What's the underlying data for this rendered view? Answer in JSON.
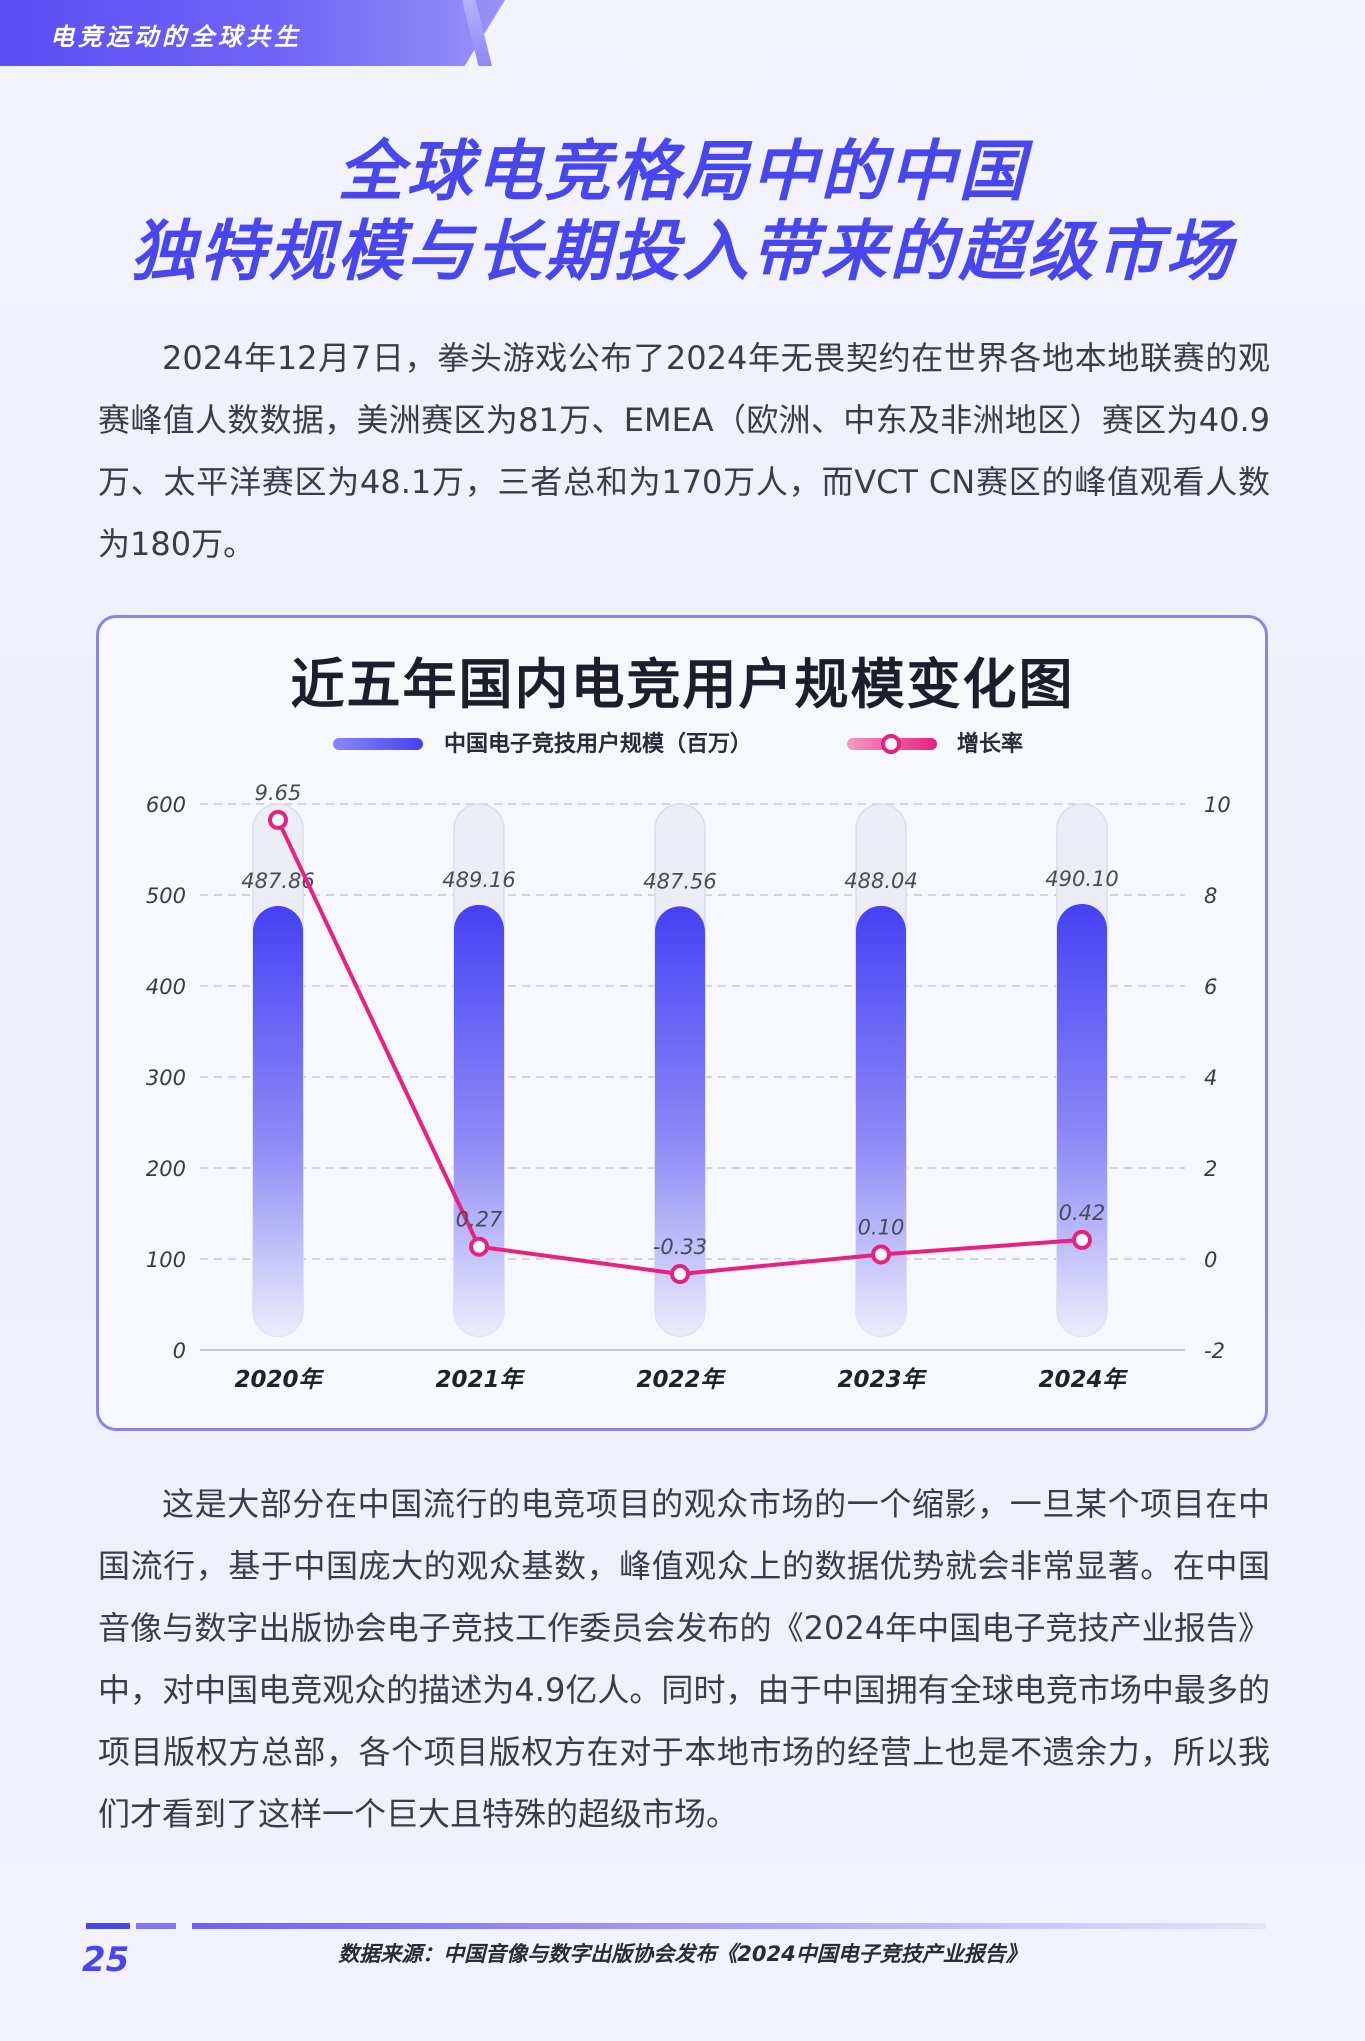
{
  "header": {
    "section": "电竞运动的全球共生"
  },
  "title": {
    "line1": "全球电竞格局中的中国",
    "line2": "独特规模与长期投入带来的超级市场"
  },
  "intro_paragraph": "2024年12月7日，拳头游戏公布了2024年无畏契约在世界各地本地联赛的观赛峰值人数数据，美洲赛区为81万、EMEA（欧洲、中东及非洲地区）赛区为40.9万、太平洋赛区为48.1万，三者总和为170万人，而VCT CN赛区的峰值观看人数为180万。",
  "body_paragraph": "这是大部分在中国流行的电竞项目的观众市场的一个缩影，一旦某个项目在中国流行，基于中国庞大的观众基数，峰值观众上的数据优势就会非常显著。在中国音像与数字出版协会电子竞技工作委员会发布的《2024年中国电子竞技产业报告》中，对中国电竞观众的描述为4.9亿人。同时，由于中国拥有全球电竞市场中最多的项目版权方总部，各个项目版权方在对于本地市场的经营上也是不遗余力，所以我们才看到了这样一个巨大且特殊的超级市场。",
  "chart_data": {
    "type": "bar",
    "title": "近五年国内电竞用户规模变化图",
    "categories": [
      "2020年",
      "2021年",
      "2022年",
      "2023年",
      "2024年"
    ],
    "series": [
      {
        "name": "中国电子竞技用户规模（百万）",
        "type": "bar",
        "axis": "left",
        "values": [
          487.86,
          489.16,
          487.56,
          488.04,
          490.1
        ],
        "labels": [
          "487.86",
          "489.16",
          "487.56",
          "488.04",
          "490.10"
        ],
        "color": "#4b46f5"
      },
      {
        "name": "增长率",
        "type": "line",
        "axis": "right",
        "values": [
          9.65,
          0.27,
          -0.33,
          0.1,
          0.42
        ],
        "labels": [
          "9.65",
          "0.27",
          "-0.33",
          "0.10",
          "0.42"
        ],
        "color": "#e6217e"
      }
    ],
    "ylim_left": [
      0,
      600
    ],
    "yticks_left": [
      "0",
      "100",
      "200",
      "300",
      "400",
      "500",
      "600"
    ],
    "ylim_right": [
      -2,
      10
    ],
    "yticks_right": [
      "-2",
      "0",
      "2",
      "4",
      "6",
      "8",
      "10"
    ],
    "grid": true,
    "legend": "top-center"
  },
  "footer": {
    "page_number": "25",
    "source": "数据来源：中国音像与数字出版协会发布《2024中国电子竞技产业报告》"
  },
  "colors": {
    "accent": "#4a46ee",
    "line": "#e6217e",
    "bar": "#4b46f5"
  }
}
